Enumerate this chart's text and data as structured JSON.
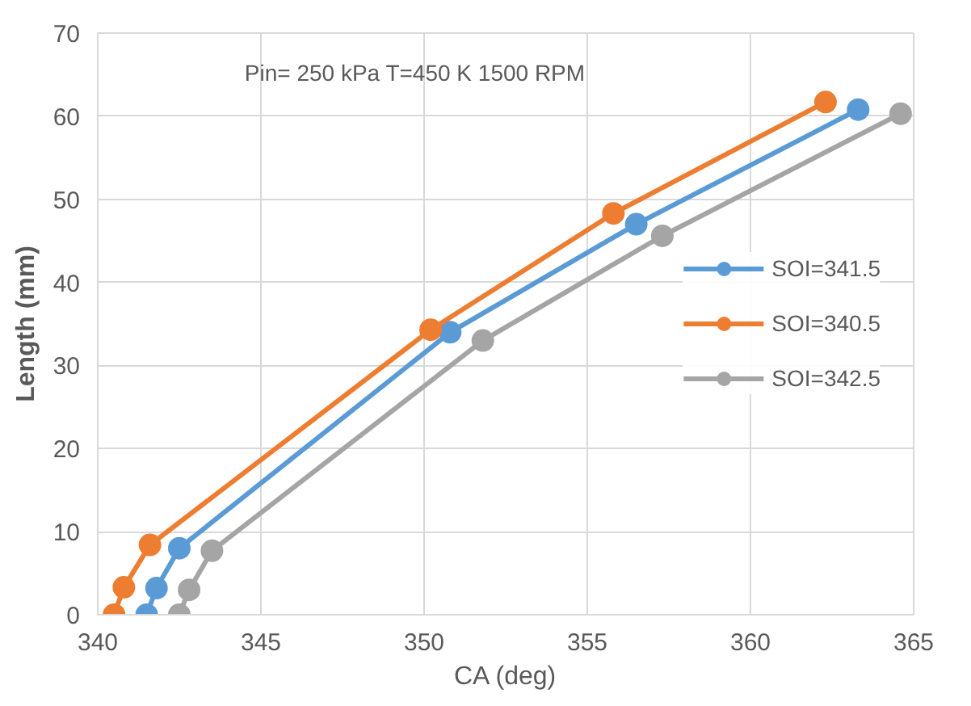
{
  "chart_data": {
    "type": "line",
    "xlabel": "CA (deg)",
    "ylabel": "Length (mm)",
    "annotations": [
      "Pin= 250 kPa  T=450 K   1500 RPM"
    ],
    "xlim": [
      340,
      365
    ],
    "xticks": [
      340,
      345,
      350,
      355,
      360,
      365
    ],
    "ylim": [
      0,
      70
    ],
    "yticks": [
      0,
      10,
      20,
      30,
      40,
      50,
      60,
      70
    ],
    "grid": true,
    "legend": "right",
    "marker": "circle",
    "line_style": "solid",
    "series": [
      {
        "name": "SOI=341.5",
        "color": "#5b9bd5",
        "x": [
          341.5,
          341.8,
          342.5,
          350.8,
          356.5,
          363.3
        ],
        "values": [
          0,
          3.2,
          8.0,
          34.0,
          47.0,
          60.8
        ]
      },
      {
        "name": "SOI=340.5",
        "color": "#ed7d31",
        "x": [
          340.5,
          340.8,
          341.6,
          350.2,
          355.8,
          362.3
        ],
        "values": [
          0,
          3.3,
          8.4,
          34.3,
          48.3,
          61.7
        ]
      },
      {
        "name": "SOI=342.5",
        "color": "#a5a5a5",
        "x": [
          342.5,
          342.8,
          343.5,
          351.8,
          357.3,
          364.6
        ],
        "values": [
          0,
          3.0,
          7.7,
          33.0,
          45.6,
          60.3
        ]
      }
    ]
  }
}
